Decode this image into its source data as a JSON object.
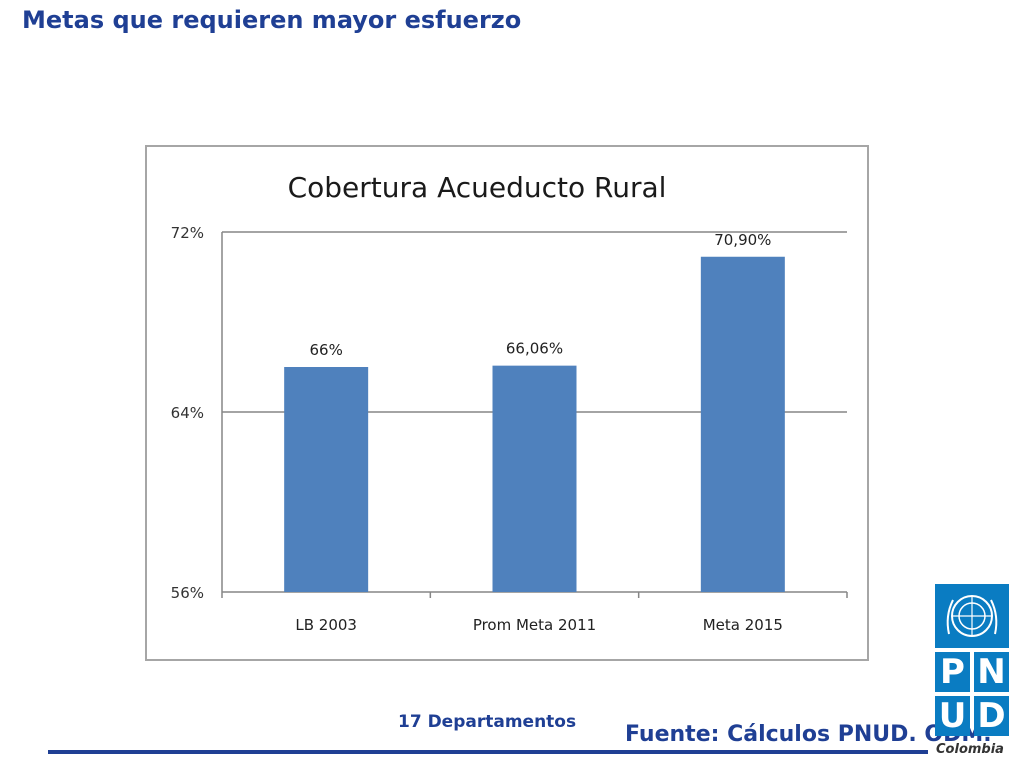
{
  "slide": {
    "title": "Metas que requieren mayor esfuerzo",
    "footnote": "17 Departamentos",
    "source": "Fuente: Cálculos PNUD. ODM."
  },
  "logo": {
    "letters": [
      "P",
      "N",
      "U",
      "D"
    ],
    "word": "Colombia",
    "color": "#0a7cc2"
  },
  "chart_data": {
    "type": "bar",
    "title": "Cobertura Acueducto Rural",
    "categories": [
      "LB 2003",
      "Prom Meta 2011",
      "Meta 2015"
    ],
    "values": [
      66.0,
      66.06,
      70.9
    ],
    "data_labels": [
      "66%",
      "66,06%",
      "70,90%"
    ],
    "yticks": [
      56,
      64,
      72
    ],
    "ytick_labels": [
      "56%",
      "64%",
      "72%"
    ],
    "ylim": [
      56,
      72
    ],
    "grid": true,
    "bar_color": "#4f81bd",
    "gridline_color": "#868686"
  }
}
